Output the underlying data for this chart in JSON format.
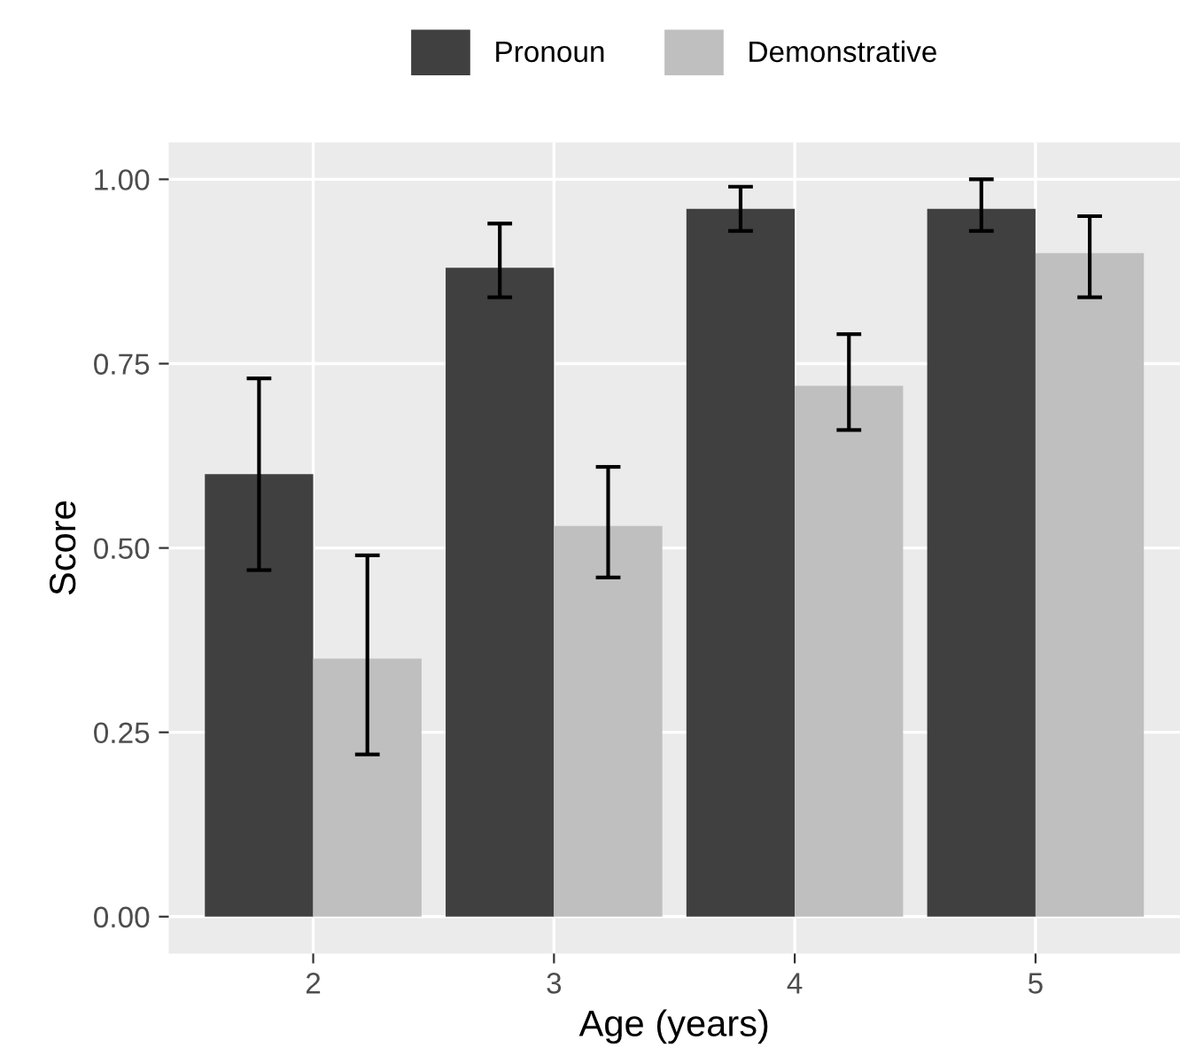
{
  "chart_data": {
    "type": "bar",
    "xlabel": "Age (years)",
    "ylabel": "Score",
    "categories": [
      "2",
      "3",
      "4",
      "5"
    ],
    "series": [
      {
        "name": "Pronoun",
        "color": "#404040",
        "values": [
          0.6,
          0.88,
          0.96,
          0.96
        ],
        "errors": [
          [
            0.47,
            0.73
          ],
          [
            0.84,
            0.94
          ],
          [
            0.93,
            0.99
          ],
          [
            0.93,
            1.0
          ]
        ]
      },
      {
        "name": "Demonstrative",
        "color": "#bfbfbf",
        "values": [
          0.35,
          0.53,
          0.72,
          0.9
        ],
        "errors": [
          [
            0.22,
            0.49
          ],
          [
            0.46,
            0.61
          ],
          [
            0.66,
            0.79
          ],
          [
            0.84,
            0.95
          ]
        ]
      }
    ],
    "ylim": [
      -0.05,
      1.05
    ],
    "yticks": [
      {
        "value": 0,
        "label": "0.00"
      },
      {
        "value": 0.25,
        "label": "0.25"
      },
      {
        "value": 0.5,
        "label": "0.50"
      },
      {
        "value": 0.75,
        "label": "0.75"
      },
      {
        "value": 1,
        "label": "1.00"
      }
    ],
    "grid": true,
    "legend": "top"
  }
}
